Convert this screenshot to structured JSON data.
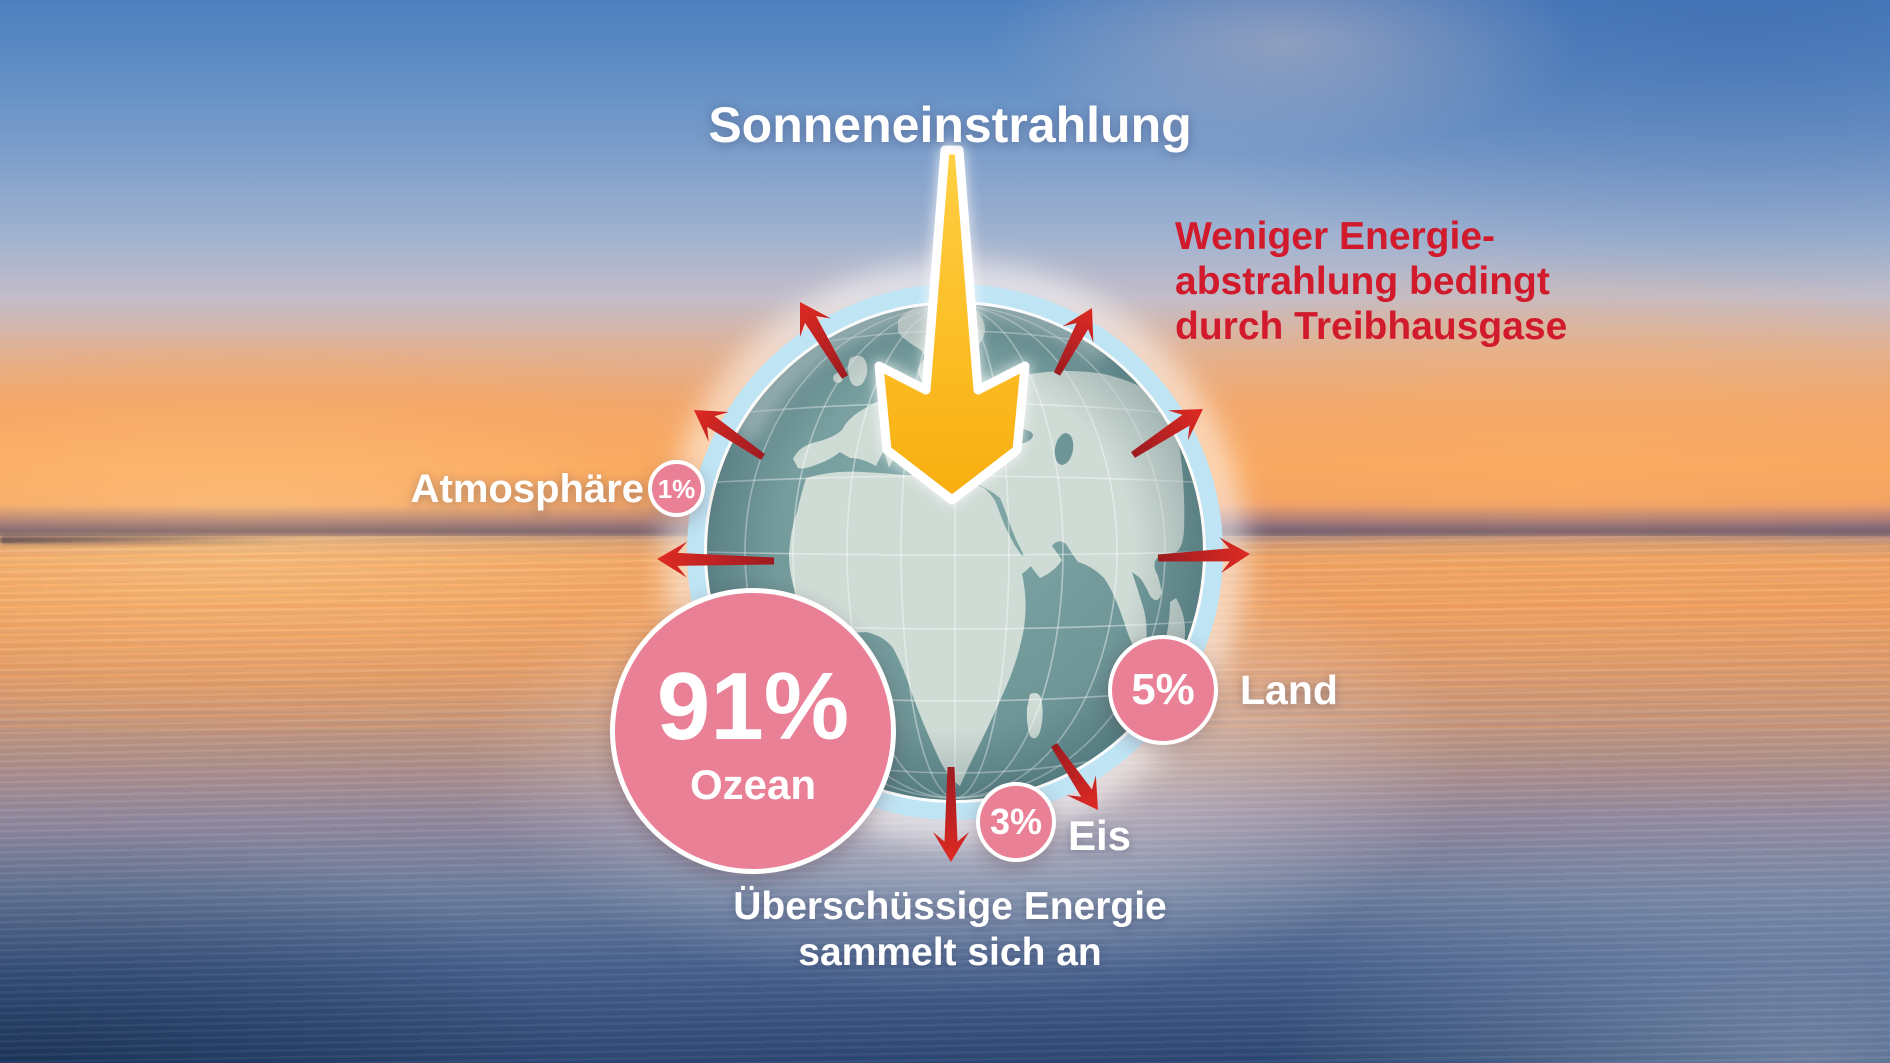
{
  "title": "Sonneneinstrahlung",
  "greenhouse_note": {
    "lines": [
      "Weniger Energie-",
      "abstrahlung bedingt",
      "durch Treibhausgase"
    ]
  },
  "excess_energy_note": {
    "lines": [
      "Überschüssige Energie",
      "sammelt sich an"
    ]
  },
  "shares": {
    "atmosphere": {
      "label": "Atmosphäre",
      "value": "1%"
    },
    "ocean": {
      "label": "Ozean",
      "value": "91%"
    },
    "land": {
      "label": "Land",
      "value": "5%"
    },
    "ice": {
      "label": "Eis",
      "value": "3%"
    }
  },
  "icons": {
    "sun_arrow": "sun-radiation-arrow-icon",
    "heat_arrow": "heat-arrow-icon"
  },
  "colors": {
    "bubble_pink": "#ea8096",
    "arrow_red": "#c42026",
    "note_red": "#d11a2b",
    "sun_arrow_yellow": "#fcbc17",
    "globe_halo_blue": "#bfe4f4",
    "globe_ocean_teal": "#6f9697",
    "globe_land": "#cfdbd5"
  }
}
